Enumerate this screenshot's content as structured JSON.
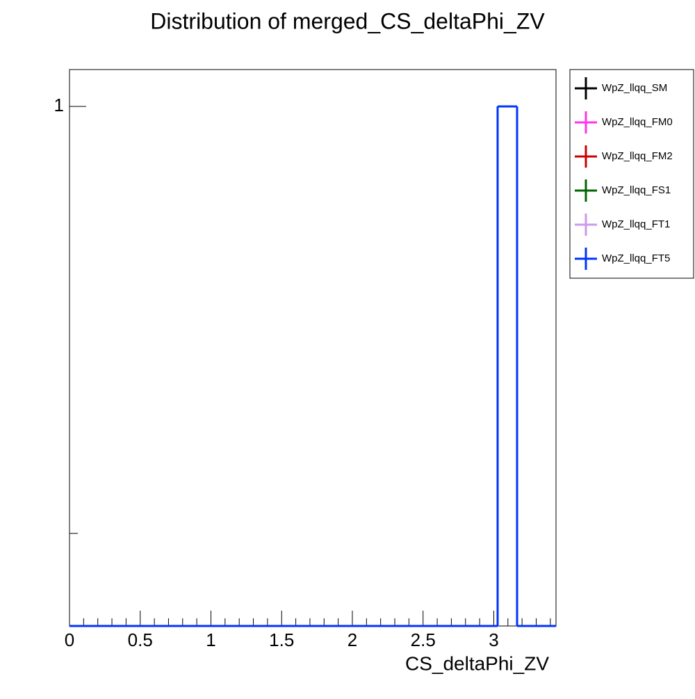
{
  "chart_data": {
    "type": "histogram",
    "title": "Distribution of merged_CS_deltaPhi_ZV",
    "x_label": "CS_deltaPhi_ZV",
    "bins": [
      0,
      0.1376,
      0.2752,
      0.4128,
      0.5504,
      0.688,
      0.8256,
      0.9632,
      1.1008,
      1.2384,
      1.376,
      1.5136,
      1.6512,
      1.7888,
      1.9264,
      2.064,
      2.2016,
      2.3392,
      2.4768,
      2.6144,
      2.752,
      2.8896,
      3.0272,
      3.1648,
      3.3024,
      3.44
    ],
    "series": [
      {
        "name": "WpZ_llqq_SM",
        "color": "#000000",
        "values": [
          0,
          0,
          0,
          0,
          0,
          0,
          0,
          0,
          0,
          0,
          0,
          0,
          0,
          0,
          0,
          0,
          0,
          0,
          0,
          0,
          0,
          0,
          1,
          0,
          0
        ]
      },
      {
        "name": "WpZ_llqq_FM0",
        "color": "#ff33ee",
        "values": [
          0,
          0,
          0,
          0,
          0,
          0,
          0,
          0,
          0,
          0,
          0,
          0,
          0,
          0,
          0,
          0,
          0,
          0,
          0,
          0,
          0,
          0,
          1,
          0,
          0
        ]
      },
      {
        "name": "WpZ_llqq_FM2",
        "color": "#cc0000",
        "values": [
          0,
          0,
          0,
          0,
          0,
          0,
          0,
          0,
          0,
          0,
          0,
          0,
          0,
          0,
          0,
          0,
          0,
          0,
          0,
          0,
          0,
          0,
          1,
          0,
          0
        ]
      },
      {
        "name": "WpZ_llqq_FS1",
        "color": "#006600",
        "values": [
          0,
          0,
          0,
          0,
          0,
          0,
          0,
          0,
          0,
          0,
          0,
          0,
          0,
          0,
          0,
          0,
          0,
          0,
          0,
          0,
          0,
          0,
          1,
          0,
          0
        ]
      },
      {
        "name": "WpZ_llqq_FT1",
        "color": "#cc99ee",
        "values": [
          0,
          0,
          0,
          0,
          0,
          0,
          0,
          0,
          0,
          0,
          0,
          0,
          0,
          0,
          0,
          0,
          0,
          0,
          0,
          0,
          0,
          0,
          1,
          0,
          0
        ]
      },
      {
        "name": "WpZ_llqq_FT5",
        "color": "#0033ff",
        "values": [
          0,
          0,
          0,
          0,
          0,
          0,
          0,
          0,
          0,
          0,
          0,
          0,
          0,
          0,
          0,
          0,
          0,
          0,
          0,
          0,
          0,
          0,
          1,
          0,
          0
        ]
      }
    ],
    "xlim": [
      0,
      3.44
    ],
    "xticks": [
      0,
      0.5,
      1,
      1.5,
      2,
      2.5,
      3
    ],
    "ylim": [
      0.0607,
      1.22
    ],
    "yticks": [
      1
    ],
    "yminor_ticks": [
      0.1
    ],
    "log_y": true,
    "legend": "outside-right"
  }
}
